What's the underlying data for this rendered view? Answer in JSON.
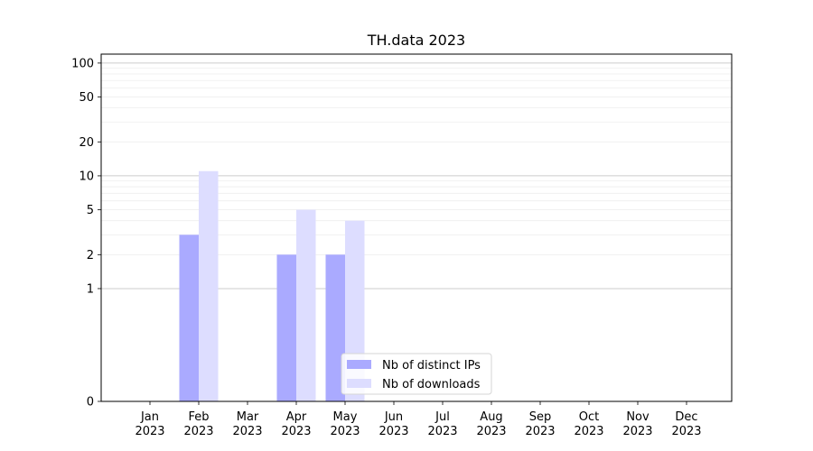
{
  "chart_data": {
    "type": "bar",
    "title": "TH.data 2023",
    "xlabel": "",
    "ylabel": "",
    "yscale": "symlog",
    "ylim": [
      0,
      120
    ],
    "yticks": [
      0,
      1,
      2,
      5,
      10,
      20,
      50,
      100
    ],
    "grid": "horizontal",
    "legend_position": "bottom-center",
    "categories": [
      "Jan\n2023",
      "Feb\n2023",
      "Mar\n2023",
      "Apr\n2023",
      "May\n2023",
      "Jun\n2023",
      "Jul\n2023",
      "Aug\n2023",
      "Sep\n2023",
      "Oct\n2023",
      "Nov\n2023",
      "Dec\n2023"
    ],
    "series": [
      {
        "name": "Nb of distinct IPs",
        "color": "#aaaaff",
        "values": [
          0,
          3,
          0,
          2,
          2,
          0,
          0,
          0,
          0,
          0,
          0,
          0
        ]
      },
      {
        "name": "Nb of downloads",
        "color": "#ddddff",
        "values": [
          0,
          11,
          0,
          5,
          4,
          0,
          0,
          0,
          0,
          0,
          0,
          0
        ]
      }
    ]
  }
}
